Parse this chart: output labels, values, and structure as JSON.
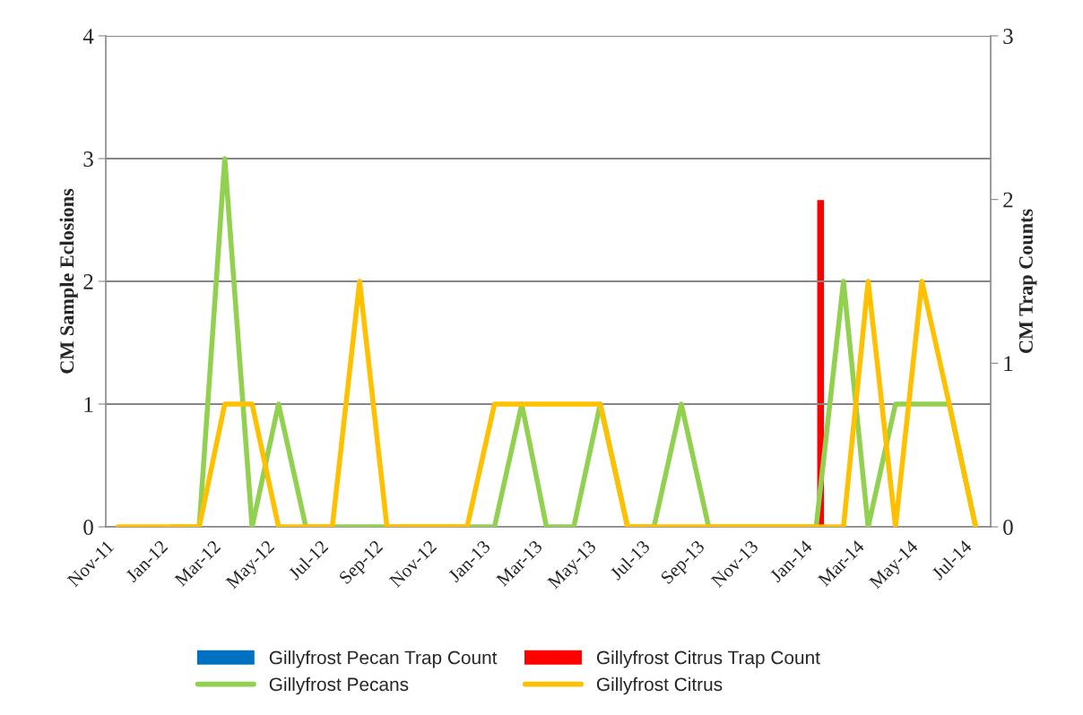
{
  "chart_data": {
    "type": "line",
    "ylabel": "CM Sample Eclosions",
    "y2label": "CM Trap Counts",
    "x": [
      "2011-11-15",
      "2011-12-15",
      "2012-01-15",
      "2012-02-15",
      "2012-03-15",
      "2012-04-15",
      "2012-05-15",
      "2012-06-15",
      "2012-07-15",
      "2012-08-15",
      "2012-09-15",
      "2012-10-15",
      "2012-11-15",
      "2012-12-15",
      "2013-01-15",
      "2013-02-15",
      "2013-03-15",
      "2013-04-15",
      "2013-05-15",
      "2013-06-15",
      "2013-07-15",
      "2013-08-15",
      "2013-09-15",
      "2013-10-15",
      "2013-11-15",
      "2013-12-15",
      "2014-01-15",
      "2014-02-15",
      "2014-03-15",
      "2014-04-15",
      "2014-05-15",
      "2014-06-15",
      "2014-07-15"
    ],
    "series": [
      {
        "name": "Gillyfrost Pecan Trap Count",
        "type": "bar",
        "axis": "y2",
        "color": "#0070c0",
        "values": [
          null,
          null,
          null,
          null,
          null,
          null,
          null,
          null,
          null,
          null,
          null,
          null,
          null,
          null,
          null,
          null,
          null,
          null,
          null,
          null,
          null,
          null,
          null,
          null,
          null,
          null,
          null,
          null,
          null,
          null,
          null,
          null,
          null
        ]
      },
      {
        "name": "Gillyfrost Citrus Trap Count",
        "type": "bar",
        "axis": "y2",
        "color": "#ff0000",
        "x": [
          "2014-01-20"
        ],
        "values": [
          2
        ]
      },
      {
        "name": "Gillyfrost Pecans",
        "color": "#92d050",
        "values": [
          null,
          null,
          0,
          0,
          3,
          0,
          1,
          0,
          0,
          0,
          0,
          0,
          0,
          0,
          0,
          1,
          0,
          0,
          1,
          0,
          0,
          1,
          0,
          0,
          0,
          0,
          0,
          2,
          0,
          1,
          1,
          1,
          0
        ]
      },
      {
        "name": "Gillyfrost Citrus",
        "color": "#ffc000",
        "values": [
          0,
          0,
          0,
          0,
          1,
          1,
          0,
          0,
          0,
          2,
          0,
          0,
          0,
          0,
          1,
          1,
          1,
          1,
          1,
          0,
          0,
          0,
          0,
          0,
          0,
          0,
          0,
          0,
          2,
          0,
          2,
          1,
          0
        ]
      }
    ],
    "xlim": [
      "2011-11-01",
      "2014-08-01"
    ],
    "xticks": [
      {
        "value": "2011-11-01",
        "label": "Nov-11"
      },
      {
        "value": "2012-01-01",
        "label": "Jan-12"
      },
      {
        "value": "2012-03-01",
        "label": "Mar-12"
      },
      {
        "value": "2012-05-01",
        "label": "May-12"
      },
      {
        "value": "2012-07-01",
        "label": "Jul-12"
      },
      {
        "value": "2012-09-01",
        "label": "Sep-12"
      },
      {
        "value": "2012-11-01",
        "label": "Nov-12"
      },
      {
        "value": "2013-01-01",
        "label": "Jan-13"
      },
      {
        "value": "2013-03-01",
        "label": "Mar-13"
      },
      {
        "value": "2013-05-01",
        "label": "May-13"
      },
      {
        "value": "2013-07-01",
        "label": "Jul-13"
      },
      {
        "value": "2013-09-01",
        "label": "Sep-13"
      },
      {
        "value": "2013-11-01",
        "label": "Nov-13"
      },
      {
        "value": "2014-01-01",
        "label": "Jan-14"
      },
      {
        "value": "2014-03-01",
        "label": "Mar-14"
      },
      {
        "value": "2014-05-01",
        "label": "May-14"
      },
      {
        "value": "2014-07-01",
        "label": "Jul-14"
      }
    ],
    "ylim": [
      0,
      4
    ],
    "yticks": [
      0,
      1,
      2,
      3,
      4
    ],
    "y2lim": [
      0,
      3
    ],
    "y2ticks": [
      0,
      1,
      2,
      3
    ],
    "grid": "y",
    "legend": "bottom",
    "marker": "none",
    "line_style": "solid"
  }
}
